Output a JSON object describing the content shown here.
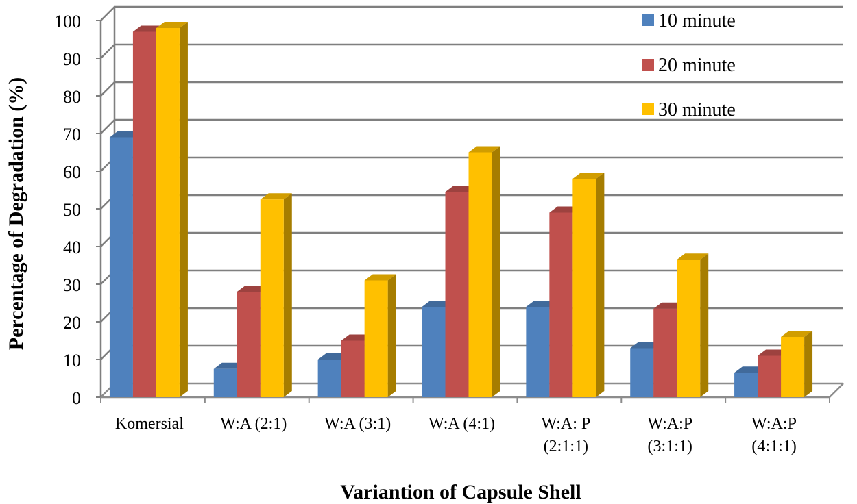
{
  "chart_data": {
    "type": "bar",
    "style": "3d-clustered-column",
    "title": "",
    "xlabel": "Variantion of Capsule Shell",
    "ylabel": "Percentage of Degradation (%)",
    "ylim": [
      0,
      100
    ],
    "yticks": [
      "0",
      "10",
      "20",
      "30",
      "40",
      "50",
      "60",
      "70",
      "80",
      "90",
      "100"
    ],
    "grid": true,
    "legend_position": "top-right",
    "categories": [
      [
        "Komersial"
      ],
      [
        "W:A (2:1)"
      ],
      [
        "W:A (3:1)"
      ],
      [
        "W:A (4:1)"
      ],
      [
        "W:A: P",
        "(2:1:1)"
      ],
      [
        "W:A:P",
        "(3:1:1)"
      ],
      [
        "W:A:P",
        "(4:1:1)"
      ]
    ],
    "series": [
      {
        "name": "10 minute",
        "color": "#4F81BD",
        "values": [
          69,
          7.5,
          10,
          24,
          24,
          13,
          6.5
        ]
      },
      {
        "name": "20 minute",
        "color": "#C0504D",
        "values": [
          97,
          28,
          15,
          54.5,
          49,
          23.5,
          11
        ]
      },
      {
        "name": "30 minute",
        "color": "#FFC000",
        "values": [
          98,
          52.5,
          31,
          65,
          58,
          36.5,
          16
        ]
      }
    ]
  }
}
